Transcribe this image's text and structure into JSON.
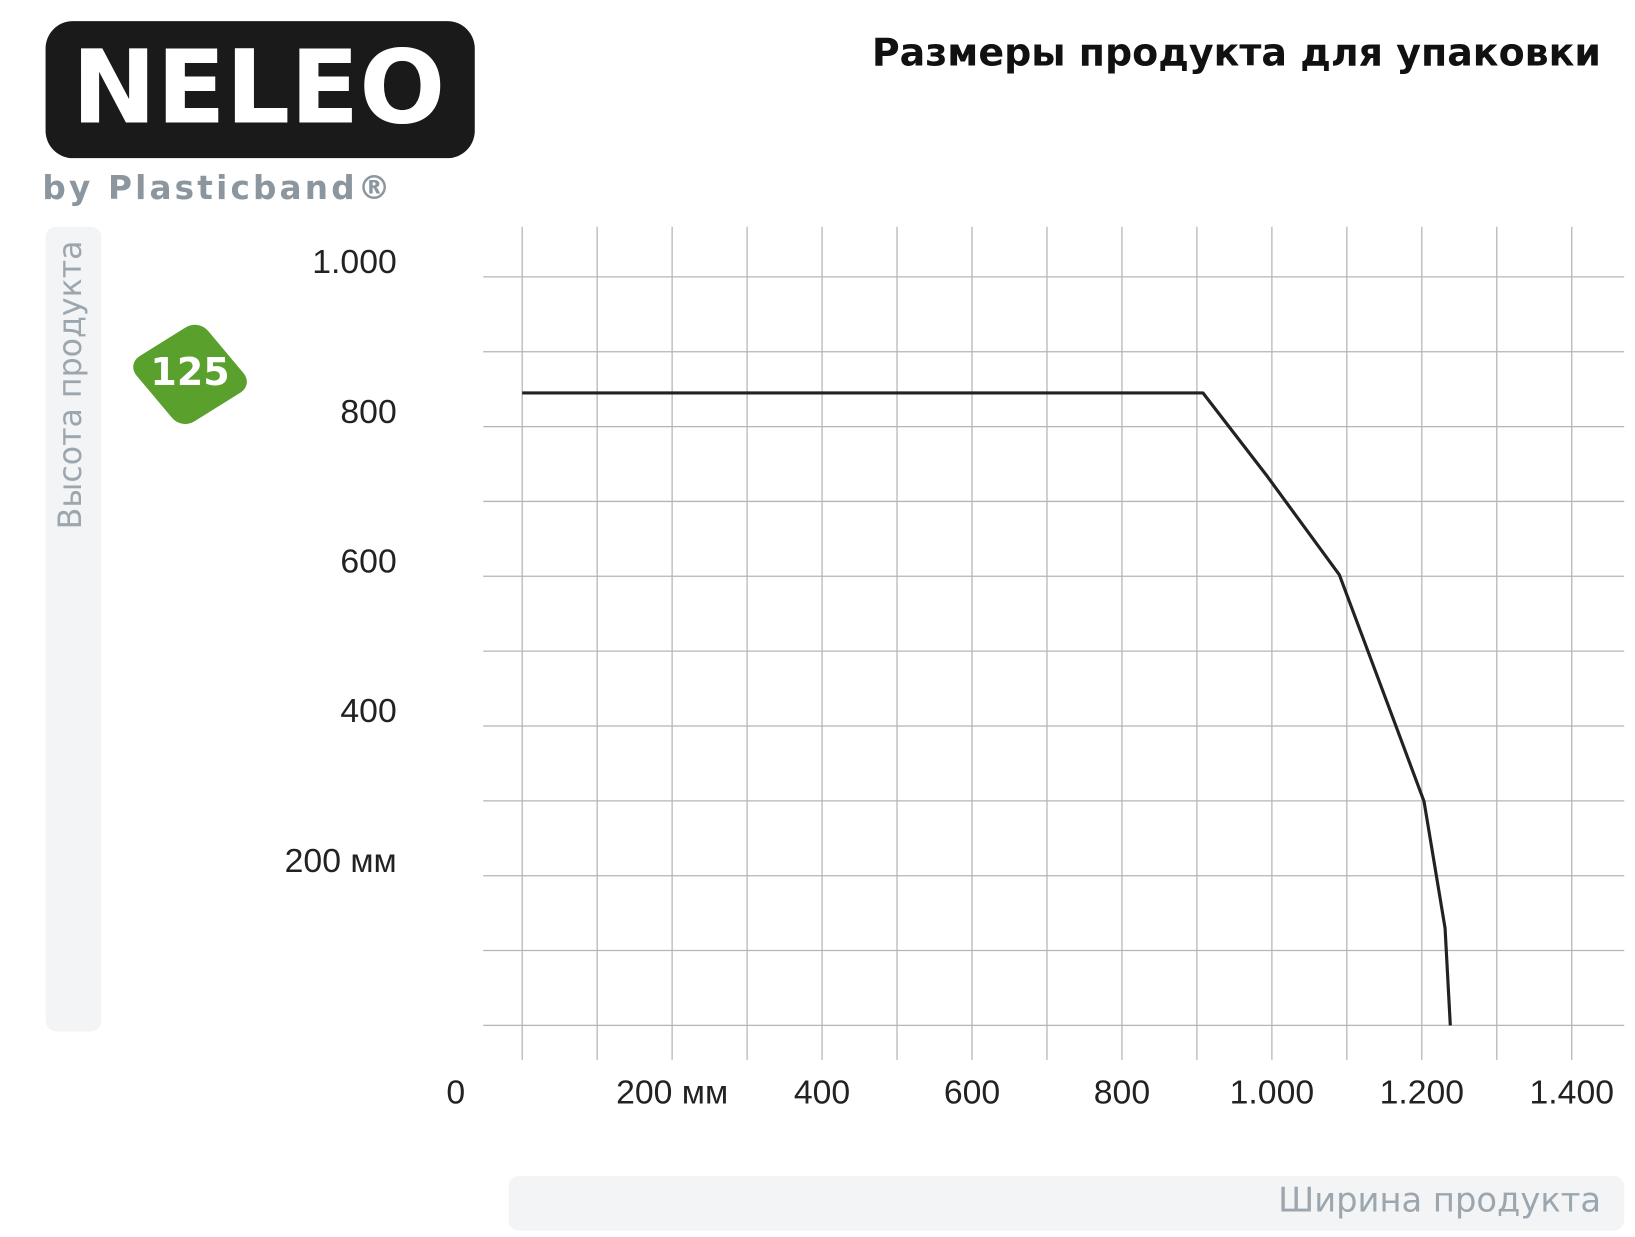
{
  "logo": {
    "name": "NELEO",
    "tagline": "by Plasticband®"
  },
  "badge": "125",
  "chart_data": {
    "type": "line",
    "title": "Размеры продукта для упаковки",
    "y_label": "Высота продукта",
    "x_label": "Ширина продукта",
    "xlim": [
      -52,
      1470
    ],
    "ylim": [
      -46,
      1067
    ],
    "xticks": [
      {
        "value": 0,
        "label": "0"
      },
      {
        "value": 200,
        "label": "200 мм"
      },
      400,
      600,
      800,
      {
        "value": 1000,
        "label": "1.000"
      },
      {
        "value": 1200,
        "label": "1.200"
      },
      {
        "value": 1400,
        "label": "1.400"
      }
    ],
    "x_minor_ticks": [
      100,
      300,
      500,
      700,
      900,
      1100,
      1300
    ],
    "yticks": [
      {
        "value": 200,
        "label": "200 мм"
      },
      400,
      600,
      800,
      {
        "value": 1000,
        "label": "1.000"
      }
    ],
    "y_minor_ticks": [
      0,
      100,
      300,
      500,
      700,
      900
    ],
    "grid": true,
    "series": [
      {
        "color": "#222222",
        "x": [
          0,
          908,
          992,
          1090,
          1161,
          1203,
          1231,
          1238
        ],
        "values": [
          845,
          845,
          736,
          602,
          412,
          299,
          130,
          0
        ]
      }
    ]
  }
}
